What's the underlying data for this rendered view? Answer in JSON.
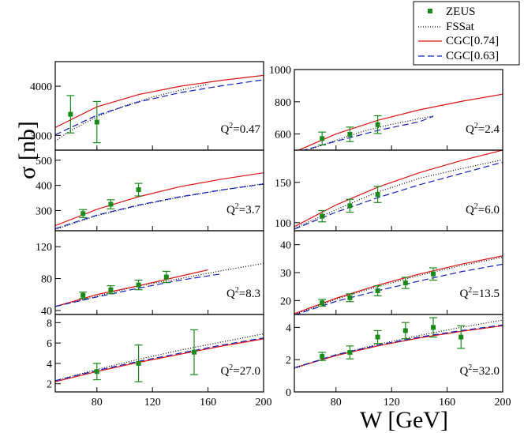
{
  "chart_data": {
    "type": "scatter",
    "ylabel": "σ [nb]",
    "xlabel": "W [GeV]",
    "x_ticks": [
      80,
      120,
      160,
      200
    ],
    "xlim": [
      50,
      200
    ],
    "legend": {
      "placement": "top-right",
      "entries": [
        {
          "name": "ZEUS",
          "style": "marker",
          "color": "#1a8a1a"
        },
        {
          "name": "FSSat",
          "style": "dotted",
          "color": "#000000"
        },
        {
          "name": "CGC[0.74]",
          "style": "solid",
          "color": "#e01010"
        },
        {
          "name": "CGC[0.63]",
          "style": "dashed",
          "color": "#1020c0"
        }
      ]
    },
    "panels": [
      {
        "q2_label": "Q",
        "q2_sup": "2",
        "q2_value": "=0.47",
        "ylim": [
          2700,
          4500
        ],
        "yticks": [
          3000,
          4000
        ],
        "show_xticks": false,
        "points": [
          {
            "x": 61,
            "y": 3430,
            "err": 380
          },
          {
            "x": 80,
            "y": 3270,
            "err": 420
          }
        ],
        "curves": {
          "fssat": {
            "x": [
              50,
              60,
              80,
              100,
              120,
              140,
              160
            ],
            "y": [
              2880,
              3080,
              3380,
              3600,
              3780,
              3920,
              4040
            ]
          },
          "cgc074": {
            "x": [
              50,
              80,
              110,
              140,
              170,
              200
            ],
            "y": [
              3160,
              3580,
              3830,
              4000,
              4120,
              4220
            ]
          },
          "cgc063": {
            "x": [
              50,
              80,
              110,
              140,
              170,
              200
            ],
            "y": [
              3010,
              3410,
              3680,
              3870,
              4010,
              4130
            ]
          }
        }
      },
      {
        "q2_label": "Q",
        "q2_sup": "2",
        "q2_value": "=2.4",
        "ylim": [
          500,
          1000
        ],
        "yticks": [
          600,
          800,
          1000
        ],
        "show_xticks": false,
        "points": [
          {
            "x": 70,
            "y": 572,
            "err": 40
          },
          {
            "x": 90,
            "y": 598,
            "err": 45
          },
          {
            "x": 110,
            "y": 658,
            "err": 55
          }
        ],
        "curves": {
          "fssat": {
            "x": [
              60,
              80,
              100,
              120,
              140,
              150
            ],
            "y": [
              500,
              562,
              618,
              660,
              695,
              712
            ]
          },
          "cgc074": {
            "x": [
              50,
              80,
              110,
              140,
              170,
              200
            ],
            "y": [
              488,
              600,
              685,
              750,
              802,
              847
            ]
          },
          "cgc063": {
            "x": [
              55,
              80,
              110,
              140,
              150
            ],
            "y": [
              495,
              555,
              622,
              676,
              710
            ]
          }
        }
      },
      {
        "q2_label": "Q",
        "q2_sup": "2",
        "q2_value": "=3.7",
        "ylim": [
          220,
          540
        ],
        "yticks": [
          300,
          400,
          500
        ],
        "show_xticks": false,
        "points": [
          {
            "x": 70,
            "y": 288,
            "err": 16
          },
          {
            "x": 90,
            "y": 325,
            "err": 18
          },
          {
            "x": 110,
            "y": 383,
            "err": 25
          }
        ],
        "curves": {
          "fssat": {
            "x": [
              50,
              80,
              110,
              140,
              170,
              200
            ],
            "y": [
              225,
              280,
              320,
              353,
              382,
              407
            ]
          },
          "cgc074": {
            "x": [
              50,
              80,
              110,
              140,
              170,
              200
            ],
            "y": [
              240,
              305,
              355,
              395,
              425,
              450
            ]
          },
          "cgc063": {
            "x": [
              50,
              80,
              110,
              140,
              170,
              200
            ],
            "y": [
              228,
              282,
              322,
              355,
              382,
              405
            ]
          }
        }
      },
      {
        "q2_label": "Q",
        "q2_sup": "2",
        "q2_value": "=6.0",
        "ylim": [
          90,
          190
        ],
        "yticks": [
          100,
          150
        ],
        "show_xticks": false,
        "points": [
          {
            "x": 70,
            "y": 108,
            "err": 7
          },
          {
            "x": 90,
            "y": 121,
            "err": 8
          },
          {
            "x": 110,
            "y": 135,
            "err": 10
          }
        ],
        "curves": {
          "fssat": {
            "x": [
              50,
              80,
              110,
              140,
              170,
              200
            ],
            "y": [
              93,
              116,
              138,
              155,
              167,
              178
            ]
          },
          "cgc074": {
            "x": [
              50,
              80,
              110,
              140,
              170,
              200
            ],
            "y": [
              95,
              122,
              144,
              162,
              177,
              190
            ]
          },
          "cgc063": {
            "x": [
              50,
              80,
              110,
              140,
              170,
              200
            ],
            "y": [
              92,
              113,
              131,
              147,
              161,
              175
            ]
          }
        }
      },
      {
        "q2_label": "Q",
        "q2_sup": "2",
        "q2_value": "=8.3",
        "ylim": [
          35,
          140
        ],
        "yticks": [
          40,
          80,
          120
        ],
        "show_xticks": false,
        "points": [
          {
            "x": 70,
            "y": 59,
            "err": 4
          },
          {
            "x": 90,
            "y": 66,
            "err": 5
          },
          {
            "x": 110,
            "y": 72,
            "err": 6
          },
          {
            "x": 130,
            "y": 82,
            "err": 7
          }
        ],
        "curves": {
          "fssat": {
            "x": [
              50,
              80,
              110,
              140,
              170,
              200
            ],
            "y": [
              45,
              58,
              71,
              80,
              90,
              99
            ]
          },
          "cgc074": {
            "x": [
              50,
              80,
              110,
              140,
              160
            ],
            "y": [
              45,
              60,
              71,
              83,
              91
            ]
          },
          "cgc063": {
            "x": [
              50,
              80,
              110,
              140,
              170
            ],
            "y": [
              45,
              57,
              68,
              78,
              86
            ]
          }
        }
      },
      {
        "q2_label": "Q",
        "q2_sup": "2",
        "q2_value": "=13.5",
        "ylim": [
          15,
          45
        ],
        "yticks": [
          20,
          30,
          40
        ],
        "show_xticks": false,
        "points": [
          {
            "x": 70,
            "y": 19.2,
            "err": 1.2
          },
          {
            "x": 90,
            "y": 21.0,
            "err": 1.4
          },
          {
            "x": 110,
            "y": 23.5,
            "err": 1.8
          },
          {
            "x": 130,
            "y": 26.3,
            "err": 2.0
          },
          {
            "x": 150,
            "y": 29.5,
            "err": 2.2
          }
        ],
        "curves": {
          "fssat": {
            "x": [
              50,
              80,
              110,
              140,
              170,
              200
            ],
            "y": [
              15,
              20.5,
              25,
              29,
              32.5,
              35.5
            ]
          },
          "cgc074": {
            "x": [
              50,
              80,
              110,
              140,
              170,
              200
            ],
            "y": [
              15.3,
              20.8,
              25.5,
              29.5,
              33,
              36
            ]
          },
          "cgc063": {
            "x": [
              50,
              80,
              110,
              140,
              170,
              200
            ],
            "y": [
              14.8,
              19.7,
              23.5,
              27,
              30.3,
              33
            ]
          }
        }
      },
      {
        "q2_label": "Q",
        "q2_sup": "2",
        "q2_value": "=27.0",
        "ylim": [
          1.2,
          8.8
        ],
        "yticks": [
          2,
          4,
          6,
          8
        ],
        "show_xticks": true,
        "points": [
          {
            "x": 80,
            "y": 3.2,
            "err": 0.8
          },
          {
            "x": 110,
            "y": 4.0,
            "err": 1.8
          },
          {
            "x": 150,
            "y": 5.1,
            "err": 2.2
          }
        ],
        "curves": {
          "fssat": {
            "x": [
              50,
              80,
              110,
              140,
              170,
              200
            ],
            "y": [
              2.3,
              3.4,
              4.4,
              5.3,
              6.1,
              6.9
            ]
          },
          "cgc074": {
            "x": [
              50,
              80,
              110,
              140,
              170,
              200
            ],
            "y": [
              2.2,
              3.2,
              4.1,
              4.9,
              5.7,
              6.4
            ]
          },
          "cgc063": {
            "x": [
              50,
              80,
              110,
              140,
              170,
              200
            ],
            "y": [
              2.3,
              3.3,
              4.2,
              5.0,
              5.8,
              6.5
            ]
          }
        }
      },
      {
        "q2_label": "Q",
        "q2_sup": "2",
        "q2_value": "=32.0",
        "ylim": [
          0,
          4.8
        ],
        "yticks": [
          0,
          2,
          4
        ],
        "show_xticks": true,
        "points": [
          {
            "x": 70,
            "y": 2.2,
            "err": 0.25
          },
          {
            "x": 90,
            "y": 2.45,
            "err": 0.4
          },
          {
            "x": 110,
            "y": 3.4,
            "err": 0.4
          },
          {
            "x": 130,
            "y": 3.8,
            "err": 0.5
          },
          {
            "x": 150,
            "y": 4.0,
            "err": 0.6
          },
          {
            "x": 170,
            "y": 3.4,
            "err": 0.7
          }
        ],
        "curves": {
          "fssat": {
            "x": [
              50,
              80,
              110,
              140,
              170,
              200
            ],
            "y": [
              1.45,
              2.3,
              2.95,
              3.5,
              4.0,
              4.45
            ]
          },
          "cgc074": {
            "x": [
              50,
              80,
              110,
              140,
              170,
              200
            ],
            "y": [
              1.5,
              2.25,
              2.85,
              3.35,
              3.75,
              4.1
            ]
          },
          "cgc063": {
            "x": [
              50,
              80,
              110,
              140,
              170,
              200
            ],
            "y": [
              1.5,
              2.3,
              2.9,
              3.4,
              3.8,
              4.15
            ]
          }
        }
      }
    ]
  }
}
